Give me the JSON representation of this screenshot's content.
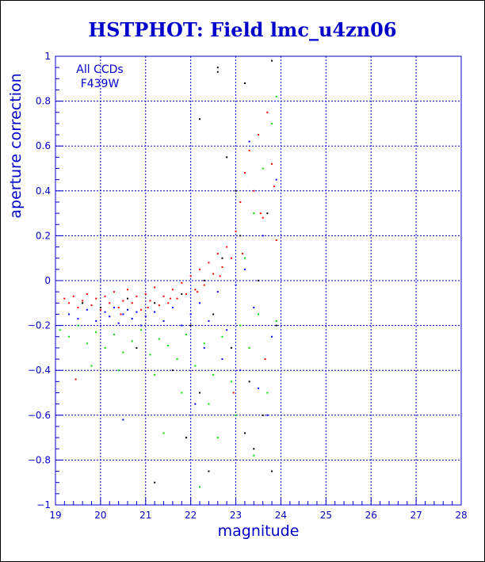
{
  "chart_data": {
    "type": "scatter",
    "title": "HSTPHOT: Field lmc_u4zn06",
    "xlabel": "magnitude",
    "ylabel": "aperture correction",
    "xlim": [
      19,
      28
    ],
    "ylim": [
      -1,
      1
    ],
    "x_ticks": [
      19,
      20,
      21,
      22,
      23,
      24,
      25,
      26,
      27,
      28
    ],
    "y_ticks": [
      -1,
      -0.8,
      -0.6,
      -0.4,
      -0.2,
      0,
      0.2,
      0.4,
      0.6,
      0.8,
      1
    ],
    "y_tick_labels": [
      "−1",
      "−0.8",
      "−0.6",
      "−0.4",
      "−0.2",
      "0",
      "0.2",
      "0.4",
      "0.6",
      "0.8",
      "1"
    ],
    "grid": true,
    "annotations": [
      "All CCDs",
      "F439W"
    ],
    "colors": {
      "text": "#0000cc",
      "grid": "#0000cc",
      "title": "#0000cc"
    },
    "series": [
      {
        "color": "#ff0000",
        "points": [
          [
            19.2,
            -0.08
          ],
          [
            19.3,
            -0.1
          ],
          [
            19.4,
            -0.07
          ],
          [
            19.5,
            -0.12
          ],
          [
            19.6,
            -0.09
          ],
          [
            19.7,
            -0.06
          ],
          [
            19.8,
            -0.11
          ],
          [
            19.9,
            -0.08
          ],
          [
            20.0,
            -0.13
          ],
          [
            20.1,
            -0.07
          ],
          [
            20.2,
            -0.1
          ],
          [
            20.3,
            -0.05
          ],
          [
            20.4,
            -0.12
          ],
          [
            20.5,
            -0.09
          ],
          [
            20.6,
            -0.04
          ],
          [
            20.7,
            -0.1
          ],
          [
            20.8,
            -0.07
          ],
          [
            20.9,
            -0.13
          ],
          [
            21.0,
            -0.06
          ],
          [
            21.1,
            -0.09
          ],
          [
            21.2,
            -0.03
          ],
          [
            21.3,
            -0.11
          ],
          [
            21.4,
            -0.07
          ],
          [
            21.5,
            -0.1
          ],
          [
            21.6,
            -0.04
          ],
          [
            21.7,
            -0.08
          ],
          [
            21.8,
            -0.01
          ],
          [
            21.9,
            -0.06
          ],
          [
            22.0,
            0.02
          ],
          [
            22.1,
            -0.04
          ],
          [
            22.2,
            0.05
          ],
          [
            22.3,
            -0.02
          ],
          [
            22.4,
            0.08
          ],
          [
            22.5,
            0.03
          ],
          [
            22.6,
            0.12
          ],
          [
            22.7,
            0.06
          ],
          [
            22.8,
            0.15
          ],
          [
            22.9,
            0.1
          ],
          [
            23.0,
            0.22
          ],
          [
            23.1,
            0.35
          ],
          [
            23.2,
            0.48
          ],
          [
            23.3,
            0.58
          ],
          [
            23.4,
            0.4
          ],
          [
            23.5,
            0.65
          ],
          [
            23.6,
            0.28
          ],
          [
            23.7,
            0.75
          ],
          [
            23.8,
            0.52
          ],
          [
            23.9,
            0.18
          ],
          [
            20.45,
            -0.15
          ],
          [
            21.05,
            -0.12
          ],
          [
            21.55,
            -0.08
          ],
          [
            22.15,
            -0.05
          ],
          [
            22.65,
            0.02
          ],
          [
            23.15,
            0.12
          ],
          [
            23.55,
            0.3
          ],
          [
            23.85,
            0.42
          ],
          [
            19.45,
            -0.44
          ],
          [
            22.95,
            -0.5
          ],
          [
            23.65,
            -0.35
          ]
        ]
      },
      {
        "color": "#0000ff",
        "points": [
          [
            19.3,
            -0.15
          ],
          [
            19.5,
            -0.17
          ],
          [
            19.7,
            -0.13
          ],
          [
            19.9,
            -0.18
          ],
          [
            20.1,
            -0.14
          ],
          [
            20.2,
            -0.16
          ],
          [
            20.3,
            -0.12
          ],
          [
            20.4,
            -0.19
          ],
          [
            20.5,
            -0.15
          ],
          [
            20.6,
            -0.13
          ],
          [
            20.7,
            -0.17
          ],
          [
            20.8,
            -0.14
          ],
          [
            20.9,
            -0.2
          ],
          [
            21.0,
            -0.16
          ],
          [
            21.2,
            -0.14
          ],
          [
            21.4,
            -0.18
          ],
          [
            21.6,
            -0.12
          ],
          [
            21.8,
            -0.2
          ],
          [
            22.0,
            -0.15
          ],
          [
            22.2,
            -0.1
          ],
          [
            22.4,
            -0.18
          ],
          [
            22.6,
            -0.05
          ],
          [
            22.8,
            -0.22
          ],
          [
            23.0,
            -0.02
          ],
          [
            23.2,
            0.05
          ],
          [
            23.4,
            -0.12
          ],
          [
            23.6,
            0.2
          ],
          [
            23.8,
            -0.25
          ],
          [
            22.3,
            -0.3
          ],
          [
            22.7,
            -0.35
          ],
          [
            23.1,
            -0.4
          ],
          [
            23.5,
            -0.48
          ],
          [
            20.5,
            -0.62
          ],
          [
            22.1,
            -0.55
          ],
          [
            23.7,
            -0.6
          ],
          [
            23.3,
            0.62
          ],
          [
            23.9,
            0.45
          ]
        ]
      },
      {
        "color": "#00dd00",
        "points": [
          [
            19.1,
            -0.22
          ],
          [
            19.3,
            -0.25
          ],
          [
            19.5,
            -0.2
          ],
          [
            19.7,
            -0.28
          ],
          [
            19.9,
            -0.23
          ],
          [
            20.1,
            -0.3
          ],
          [
            20.3,
            -0.24
          ],
          [
            20.5,
            -0.32
          ],
          [
            20.7,
            -0.27
          ],
          [
            20.9,
            -0.22
          ],
          [
            21.1,
            -0.33
          ],
          [
            21.3,
            -0.26
          ],
          [
            21.5,
            -0.29
          ],
          [
            21.7,
            -0.35
          ],
          [
            21.9,
            -0.24
          ],
          [
            22.1,
            -0.38
          ],
          [
            22.3,
            -0.28
          ],
          [
            22.5,
            -0.42
          ],
          [
            22.7,
            -0.25
          ],
          [
            22.9,
            -0.45
          ],
          [
            23.1,
            -0.2
          ],
          [
            23.3,
            -0.3
          ],
          [
            23.5,
            -0.15
          ],
          [
            23.7,
            -0.5
          ],
          [
            23.9,
            -0.18
          ],
          [
            23.2,
            0.1
          ],
          [
            23.4,
            0.3
          ],
          [
            23.6,
            0.5
          ],
          [
            23.8,
            0.7
          ],
          [
            23.9,
            0.82
          ],
          [
            19.8,
            -0.38
          ],
          [
            20.4,
            -0.4
          ],
          [
            21.2,
            -0.42
          ],
          [
            21.8,
            -0.5
          ],
          [
            22.4,
            -0.55
          ],
          [
            23.0,
            -0.6
          ],
          [
            22.6,
            -0.7
          ],
          [
            23.4,
            -0.78
          ],
          [
            21.4,
            -0.68
          ],
          [
            22.2,
            -0.92
          ]
        ]
      },
      {
        "color": "#000000",
        "points": [
          [
            19.6,
            -0.1
          ],
          [
            20.0,
            -0.12
          ],
          [
            20.6,
            -0.08
          ],
          [
            21.2,
            -0.1
          ],
          [
            21.8,
            -0.06
          ],
          [
            22.0,
            -0.2
          ],
          [
            22.3,
            0.0
          ],
          [
            22.5,
            -0.15
          ],
          [
            22.7,
            0.1
          ],
          [
            22.9,
            -0.3
          ],
          [
            23.1,
            0.2
          ],
          [
            23.3,
            -0.45
          ],
          [
            23.5,
            0.0
          ],
          [
            23.7,
            0.3
          ],
          [
            23.9,
            -0.2
          ],
          [
            22.6,
            0.95
          ],
          [
            22.6,
            0.93
          ],
          [
            23.8,
            0.98
          ],
          [
            23.2,
            0.88
          ],
          [
            22.2,
            0.72
          ],
          [
            22.8,
            0.55
          ],
          [
            23.0,
            0.4
          ],
          [
            23.6,
            -0.6
          ],
          [
            23.4,
            -0.75
          ],
          [
            22.4,
            -0.85
          ],
          [
            21.9,
            -0.7
          ],
          [
            21.2,
            -0.9
          ],
          [
            20.8,
            -0.3
          ],
          [
            21.6,
            -0.4
          ],
          [
            22.2,
            -0.5
          ],
          [
            23.2,
            -0.68
          ],
          [
            23.8,
            -0.85
          ]
        ]
      }
    ]
  }
}
